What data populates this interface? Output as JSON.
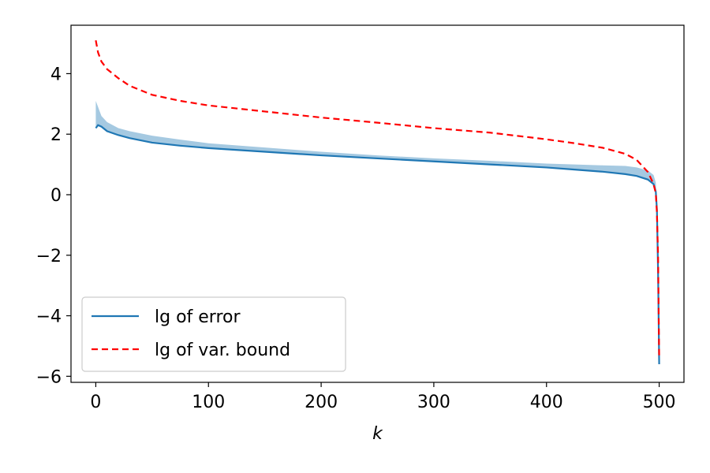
{
  "chart_data": {
    "type": "line",
    "title": "",
    "xlabel": "k",
    "ylabel": "",
    "xlim": [
      -22,
      522
    ],
    "ylim": [
      -6.2,
      5.6
    ],
    "xticks": [
      0,
      100,
      200,
      300,
      400,
      500
    ],
    "yticks": [
      -6,
      -4,
      -2,
      0,
      2,
      4
    ],
    "xtick_labels": [
      "0",
      "100",
      "200",
      "300",
      "400",
      "500"
    ],
    "ytick_labels": [
      "−6",
      "−4",
      "−2",
      "0",
      "2",
      "4"
    ],
    "grid": false,
    "legend": {
      "placement": "lower-left",
      "entries": [
        "lg of error",
        "lg of var. bound"
      ]
    },
    "series": [
      {
        "name": "lg of error",
        "style": "solid",
        "color": "#1f77b4",
        "x": [
          0,
          2,
          5,
          10,
          20,
          30,
          50,
          75,
          100,
          150,
          200,
          250,
          300,
          350,
          400,
          425,
          450,
          470,
          480,
          490,
          495,
          497,
          498,
          499,
          500
        ],
        "y": [
          2.2,
          2.3,
          2.25,
          2.1,
          1.97,
          1.87,
          1.72,
          1.62,
          1.54,
          1.42,
          1.3,
          1.2,
          1.1,
          1.0,
          0.9,
          0.83,
          0.76,
          0.68,
          0.62,
          0.5,
          0.35,
          0.1,
          -0.5,
          -2.5,
          -5.6
        ]
      },
      {
        "name": "lg of var. bound",
        "style": "dashed",
        "color": "#ff0000",
        "x": [
          0,
          2,
          5,
          10,
          20,
          30,
          50,
          75,
          100,
          150,
          200,
          250,
          300,
          350,
          400,
          425,
          450,
          470,
          480,
          490,
          495,
          497,
          498,
          499,
          500
        ],
        "y": [
          5.1,
          4.7,
          4.4,
          4.15,
          3.85,
          3.6,
          3.3,
          3.1,
          2.95,
          2.75,
          2.55,
          2.38,
          2.2,
          2.05,
          1.83,
          1.7,
          1.55,
          1.35,
          1.15,
          0.75,
          0.35,
          0.05,
          -0.6,
          -2.0,
          -5.4
        ]
      }
    ],
    "band": {
      "series": "lg of error",
      "color": "#1f77b4",
      "opacity": 0.4,
      "x": [
        0,
        2,
        5,
        10,
        20,
        30,
        50,
        75,
        100,
        150,
        200,
        250,
        300,
        350,
        400,
        425,
        450,
        470,
        480,
        490,
        495,
        497,
        498,
        499,
        500
      ],
      "lower": [
        2.2,
        2.3,
        2.25,
        2.1,
        1.97,
        1.87,
        1.72,
        1.62,
        1.54,
        1.42,
        1.3,
        1.2,
        1.1,
        1.0,
        0.9,
        0.83,
        0.76,
        0.68,
        0.62,
        0.5,
        0.35,
        0.1,
        -0.5,
        -2.5,
        -5.6
      ],
      "upper": [
        3.1,
        2.9,
        2.6,
        2.4,
        2.2,
        2.1,
        1.95,
        1.82,
        1.7,
        1.56,
        1.42,
        1.3,
        1.2,
        1.12,
        1.03,
        1.0,
        0.97,
        0.95,
        0.9,
        0.8,
        0.65,
        0.4,
        -0.3,
        -2.3,
        -5.6
      ]
    }
  }
}
